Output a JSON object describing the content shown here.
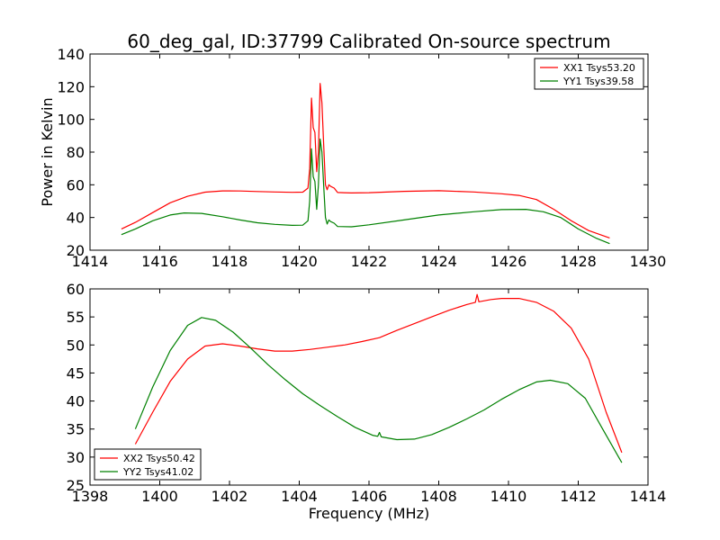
{
  "chart_data": [
    {
      "type": "line",
      "title": "60_deg_gal, ID:37799 Calibrated On-source spectrum",
      "xlabel": "",
      "ylabel": "Power in Kelvin",
      "xlim": [
        1414,
        1430
      ],
      "ylim": [
        20,
        140
      ],
      "xticks": [
        1414,
        1416,
        1418,
        1420,
        1422,
        1424,
        1426,
        1428,
        1430
      ],
      "yticks": [
        20,
        40,
        60,
        80,
        100,
        120,
        140
      ],
      "legend_position": "top-right",
      "series": [
        {
          "name": "XX1 Tsys53.20",
          "color": "#ff0000",
          "points": [
            [
              1414.9,
              33
            ],
            [
              1415.3,
              37
            ],
            [
              1415.8,
              43
            ],
            [
              1416.3,
              49
            ],
            [
              1416.8,
              53
            ],
            [
              1417.3,
              55.5
            ],
            [
              1417.8,
              56.3
            ],
            [
              1418.3,
              56.2
            ],
            [
              1418.8,
              55.9
            ],
            [
              1419.3,
              55.6
            ],
            [
              1419.8,
              55.4
            ],
            [
              1420.1,
              55.5
            ],
            [
              1420.25,
              58
            ],
            [
              1420.3,
              70
            ],
            [
              1420.35,
              113
            ],
            [
              1420.4,
              95
            ],
            [
              1420.45,
              92
            ],
            [
              1420.5,
              68
            ],
            [
              1420.55,
              80
            ],
            [
              1420.6,
              122
            ],
            [
              1420.65,
              110
            ],
            [
              1420.7,
              85
            ],
            [
              1420.75,
              60
            ],
            [
              1420.8,
              57
            ],
            [
              1420.85,
              60
            ],
            [
              1420.9,
              59
            ],
            [
              1421.0,
              58
            ],
            [
              1421.1,
              55.3
            ],
            [
              1421.5,
              55
            ],
            [
              1422.0,
              55.2
            ],
            [
              1423.0,
              56
            ],
            [
              1424.0,
              56.4
            ],
            [
              1425.0,
              55.6
            ],
            [
              1425.8,
              54.5
            ],
            [
              1426.3,
              53.5
            ],
            [
              1426.8,
              51
            ],
            [
              1427.3,
              45
            ],
            [
              1427.8,
              38
            ],
            [
              1428.3,
              32
            ],
            [
              1428.9,
              27.5
            ]
          ]
        },
        {
          "name": "YY1 Tsys39.58",
          "color": "#008000",
          "points": [
            [
              1414.9,
              29.5
            ],
            [
              1415.3,
              33
            ],
            [
              1415.8,
              38
            ],
            [
              1416.3,
              41.5
            ],
            [
              1416.7,
              42.8
            ],
            [
              1417.2,
              42.5
            ],
            [
              1417.8,
              40.5
            ],
            [
              1418.3,
              38.5
            ],
            [
              1418.8,
              36.8
            ],
            [
              1419.3,
              35.8
            ],
            [
              1419.8,
              35.2
            ],
            [
              1420.1,
              35.3
            ],
            [
              1420.25,
              38
            ],
            [
              1420.3,
              50
            ],
            [
              1420.35,
              82
            ],
            [
              1420.4,
              65
            ],
            [
              1420.45,
              62
            ],
            [
              1420.5,
              45
            ],
            [
              1420.55,
              60
            ],
            [
              1420.6,
              88
            ],
            [
              1420.65,
              80
            ],
            [
              1420.7,
              60
            ],
            [
              1420.75,
              40
            ],
            [
              1420.8,
              36
            ],
            [
              1420.85,
              38.5
            ],
            [
              1420.9,
              37.5
            ],
            [
              1421.0,
              36.5
            ],
            [
              1421.1,
              34.5
            ],
            [
              1421.5,
              34.3
            ],
            [
              1422.0,
              35.5
            ],
            [
              1423.0,
              38.5
            ],
            [
              1424.0,
              41.5
            ],
            [
              1425.0,
              43.5
            ],
            [
              1425.8,
              44.8
            ],
            [
              1426.5,
              45
            ],
            [
              1427.0,
              43.5
            ],
            [
              1427.5,
              40
            ],
            [
              1428.0,
              33
            ],
            [
              1428.5,
              27.5
            ],
            [
              1428.9,
              24
            ]
          ]
        }
      ]
    },
    {
      "type": "line",
      "title": "",
      "xlabel": "Frequency (MHz)",
      "ylabel": "",
      "xlim": [
        1398,
        1414
      ],
      "ylim": [
        25,
        60
      ],
      "xticks": [
        1398,
        1400,
        1402,
        1404,
        1406,
        1408,
        1410,
        1412,
        1414
      ],
      "yticks": [
        25,
        30,
        35,
        40,
        45,
        50,
        55,
        60
      ],
      "legend_position": "lower-left",
      "series": [
        {
          "name": "XX2 Tsys50.42",
          "color": "#ff0000",
          "points": [
            [
              1399.3,
              32.3
            ],
            [
              1399.8,
              38
            ],
            [
              1400.3,
              43.5
            ],
            [
              1400.8,
              47.5
            ],
            [
              1401.3,
              49.8
            ],
            [
              1401.8,
              50.2
            ],
            [
              1402.3,
              49.8
            ],
            [
              1402.8,
              49.3
            ],
            [
              1403.3,
              48.9
            ],
            [
              1403.8,
              48.9
            ],
            [
              1404.3,
              49.2
            ],
            [
              1404.8,
              49.6
            ],
            [
              1405.3,
              50
            ],
            [
              1405.8,
              50.6
            ],
            [
              1406.3,
              51.3
            ],
            [
              1406.8,
              52.6
            ],
            [
              1407.3,
              53.8
            ],
            [
              1407.8,
              55
            ],
            [
              1408.3,
              56.2
            ],
            [
              1408.8,
              57.2
            ],
            [
              1409.05,
              57.6
            ],
            [
              1409.1,
              59
            ],
            [
              1409.15,
              57.7
            ],
            [
              1409.5,
              58.1
            ],
            [
              1409.8,
              58.3
            ],
            [
              1410.3,
              58.3
            ],
            [
              1410.8,
              57.6
            ],
            [
              1411.3,
              56
            ],
            [
              1411.8,
              53
            ],
            [
              1412.3,
              47.5
            ],
            [
              1412.8,
              38
            ],
            [
              1413.25,
              30.8
            ]
          ]
        },
        {
          "name": "YY2 Tsys41.02",
          "color": "#008000",
          "points": [
            [
              1399.3,
              35
            ],
            [
              1399.8,
              42.5
            ],
            [
              1400.3,
              49
            ],
            [
              1400.8,
              53.5
            ],
            [
              1401.2,
              54.9
            ],
            [
              1401.6,
              54.4
            ],
            [
              1402.1,
              52.3
            ],
            [
              1402.6,
              49.5
            ],
            [
              1403.1,
              46.5
            ],
            [
              1403.6,
              43.8
            ],
            [
              1404.1,
              41.3
            ],
            [
              1404.6,
              39.2
            ],
            [
              1405.1,
              37.2
            ],
            [
              1405.6,
              35.3
            ],
            [
              1406.1,
              33.9
            ],
            [
              1406.25,
              33.7
            ],
            [
              1406.3,
              34.4
            ],
            [
              1406.35,
              33.6
            ],
            [
              1406.8,
              33.1
            ],
            [
              1407.3,
              33.2
            ],
            [
              1407.8,
              34
            ],
            [
              1408.3,
              35.3
            ],
            [
              1408.8,
              36.8
            ],
            [
              1409.3,
              38.4
            ],
            [
              1409.8,
              40.3
            ],
            [
              1410.3,
              42
            ],
            [
              1410.8,
              43.4
            ],
            [
              1411.2,
              43.7
            ],
            [
              1411.7,
              43.1
            ],
            [
              1412.2,
              40.5
            ],
            [
              1412.7,
              35
            ],
            [
              1413.25,
              29
            ]
          ]
        }
      ]
    }
  ]
}
